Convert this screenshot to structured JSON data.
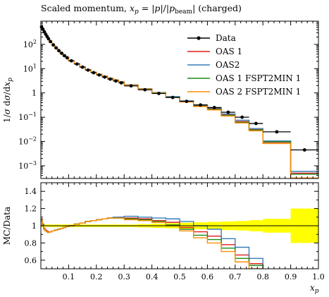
{
  "chart_data": {
    "type": "line",
    "title": "Scaled momentum, x_p = |p|/|p_beam| (charged)",
    "title_parts": {
      "prefix": "Scaled momentum, ",
      "math": "x",
      "math_sub": "p",
      "eq": " = |",
      "p1": "p",
      "mid": "|/|",
      "p2": "p",
      "p2_sub": "beam",
      "suffix": "| (charged)"
    },
    "xlabel": "x",
    "xlabel_sub": "p",
    "ylabel_top": "1/σ dσ/dx_p",
    "ylabel_top_parts": {
      "pre": "1/",
      "sigma": "σ",
      "mid": " d",
      "sigma2": "σ",
      "end": "/d",
      "x": "x",
      "sub": "p"
    },
    "ylabel_bottom": "MC/Data",
    "xlim": [
      0,
      1.0
    ],
    "ylim_top": [
      0.0003,
      900
    ],
    "yscale_top": "log",
    "ylim_bottom": [
      0.5,
      1.5
    ],
    "x_ticks": [
      "0.1",
      "0.2",
      "0.3",
      "0.4",
      "0.5",
      "0.6",
      "0.7",
      "0.8",
      "0.9",
      "1.0"
    ],
    "y_ticks_top": [
      {
        "value": 100,
        "label": "10",
        "exp": "2"
      },
      {
        "value": 10,
        "label": "10",
        "exp": "1"
      },
      {
        "value": 1,
        "label": "1",
        "exp": ""
      },
      {
        "value": 0.1,
        "label": "10",
        "exp": "−1"
      },
      {
        "value": 0.01,
        "label": "10",
        "exp": "−2"
      },
      {
        "value": 0.001,
        "label": "10",
        "exp": "−3"
      }
    ],
    "y_ticks_bottom": [
      "0.6",
      "0.8",
      "1",
      "1.2",
      "1.4"
    ],
    "legend_position": "top-right",
    "data_series": {
      "name": "Data",
      "color": "#000000",
      "x": [
        0.0025,
        0.0075,
        0.0125,
        0.0175,
        0.0225,
        0.0275,
        0.035,
        0.045,
        0.055,
        0.065,
        0.075,
        0.085,
        0.095,
        0.11,
        0.13,
        0.15,
        0.17,
        0.19,
        0.21,
        0.23,
        0.25,
        0.27,
        0.29,
        0.325,
        0.375,
        0.425,
        0.475,
        0.525,
        0.575,
        0.625,
        0.675,
        0.725,
        0.775,
        0.85,
        0.95
      ],
      "y": [
        520,
        420,
        330,
        260,
        210,
        170,
        130,
        95,
        72,
        55,
        43,
        34,
        28,
        21,
        15.5,
        11.5,
        8.7,
        6.8,
        5.5,
        4.5,
        3.7,
        3.1,
        2.6,
        1.95,
        1.35,
        0.95,
        0.65,
        0.45,
        0.32,
        0.25,
        0.16,
        0.1,
        0.055,
        0.025,
        0.0045
      ],
      "x_err": [
        0.0025,
        0.0025,
        0.0025,
        0.0025,
        0.0025,
        0.0025,
        0.005,
        0.005,
        0.005,
        0.005,
        0.005,
        0.005,
        0.005,
        0.01,
        0.01,
        0.01,
        0.01,
        0.01,
        0.01,
        0.01,
        0.01,
        0.01,
        0.01,
        0.025,
        0.025,
        0.025,
        0.025,
        0.025,
        0.025,
        0.025,
        0.025,
        0.025,
        0.025,
        0.05,
        0.05
      ]
    },
    "bin_edges": [
      0.0,
      0.005,
      0.01,
      0.015,
      0.02,
      0.025,
      0.03,
      0.04,
      0.05,
      0.06,
      0.07,
      0.08,
      0.09,
      0.1,
      0.12,
      0.14,
      0.16,
      0.18,
      0.2,
      0.22,
      0.24,
      0.26,
      0.28,
      0.3,
      0.35,
      0.4,
      0.45,
      0.5,
      0.55,
      0.6,
      0.65,
      0.7,
      0.75,
      0.8,
      0.9,
      1.0
    ],
    "series": [
      {
        "name": "OAS 1",
        "color": "#e41a1c",
        "ratio": [
          1.08,
          1.02,
          0.97,
          0.95,
          0.94,
          0.93,
          0.93,
          0.94,
          0.95,
          0.96,
          0.97,
          0.98,
          0.99,
          1.0,
          1.02,
          1.03,
          1.05,
          1.06,
          1.07,
          1.08,
          1.09,
          1.09,
          1.1,
          1.09,
          1.08,
          1.06,
          1.04,
          0.98,
          0.93,
          0.88,
          0.78,
          0.66,
          0.56,
          0.37,
          0.11
        ]
      },
      {
        "name": "OAS2",
        "color": "#377eb8",
        "ratio": [
          1.05,
          1.0,
          0.96,
          0.94,
          0.93,
          0.92,
          0.93,
          0.94,
          0.95,
          0.96,
          0.97,
          0.98,
          0.99,
          1.0,
          1.02,
          1.03,
          1.05,
          1.06,
          1.07,
          1.08,
          1.09,
          1.1,
          1.1,
          1.11,
          1.1,
          1.09,
          1.08,
          1.05,
          1.0,
          0.96,
          0.85,
          0.75,
          0.62,
          0.42,
          0.13
        ]
      },
      {
        "name": "OAS 1 FSPT2MIN 1",
        "color": "#1a8c1a",
        "ratio": [
          1.07,
          1.01,
          0.96,
          0.94,
          0.93,
          0.92,
          0.93,
          0.94,
          0.95,
          0.96,
          0.97,
          0.98,
          0.99,
          1.0,
          1.02,
          1.03,
          1.05,
          1.06,
          1.07,
          1.08,
          1.09,
          1.09,
          1.09,
          1.08,
          1.07,
          1.05,
          1.01,
          0.96,
          0.89,
          0.84,
          0.74,
          0.62,
          0.54,
          0.39,
          0.1
        ]
      },
      {
        "name": "OAS 2 FSPT2MIN 1",
        "color": "#ff8c00",
        "ratio": [
          1.06,
          1.0,
          0.96,
          0.94,
          0.93,
          0.92,
          0.93,
          0.94,
          0.95,
          0.96,
          0.97,
          0.98,
          0.99,
          1.0,
          1.02,
          1.03,
          1.05,
          1.06,
          1.07,
          1.08,
          1.09,
          1.09,
          1.09,
          1.07,
          1.06,
          1.04,
          1.0,
          0.94,
          0.86,
          0.8,
          0.7,
          0.58,
          0.5,
          0.33,
          0.07
        ]
      }
    ],
    "uncertainty_band": {
      "color": "#ffff00",
      "rel_err": [
        0.02,
        0.015,
        0.015,
        0.015,
        0.015,
        0.015,
        0.015,
        0.015,
        0.015,
        0.015,
        0.015,
        0.015,
        0.015,
        0.015,
        0.015,
        0.015,
        0.015,
        0.015,
        0.015,
        0.015,
        0.015,
        0.015,
        0.015,
        0.015,
        0.02,
        0.025,
        0.03,
        0.035,
        0.04,
        0.045,
        0.05,
        0.055,
        0.065,
        0.08,
        0.2
      ]
    }
  }
}
